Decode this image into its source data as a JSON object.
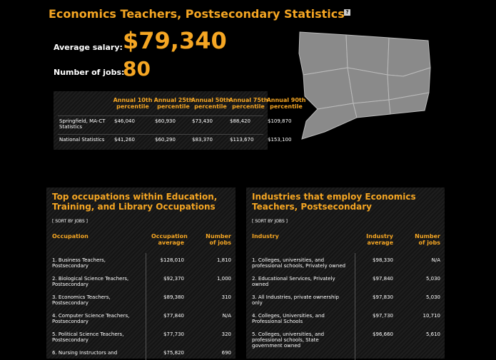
{
  "header": {
    "title": "Economics Teachers, Postsecondary Statistics",
    "help_icon": "?"
  },
  "summary": {
    "salary_label": "Average salary:",
    "salary": "$79,340",
    "jobs_label": "Number of jobs:",
    "jobs": "80"
  },
  "stats_table": {
    "columns": [
      "Annual 10th percentile",
      "Annual 25th percentile",
      "Annual 50th percentile",
      "Annual 75th percentile",
      "Annual 90th percentile"
    ],
    "rows": [
      [
        "Springfield, MA-CT Statistics",
        "$46,040",
        "$60,930",
        "$73,430",
        "$88,420",
        "$109,870"
      ],
      [
        "National Statistics",
        "$41,260",
        "$60,290",
        "$83,370",
        "$113,670",
        "$153,100"
      ]
    ]
  },
  "panels": [
    {
      "title": "Top occupations within Education, Training, and Library Occupations",
      "sort": "[ SORT BY JOBS ]",
      "columns": [
        "Occupation",
        "Occupation average",
        "Number of jobs"
      ],
      "rows": [
        [
          "1. Business Teachers, Postsecondary",
          "$128,010",
          "1,810"
        ],
        [
          "2. Biological Science Teachers, Postsecondary",
          "$92,370",
          "1,000"
        ],
        [
          "3. Economics Teachers, Postsecondary",
          "$89,380",
          "310"
        ],
        [
          "4. Computer Science Teachers, Postsecondary",
          "$77,840",
          "N/A"
        ],
        [
          "5. Political Science Teachers, Postsecondary",
          "$77,730",
          "320"
        ],
        [
          "6. Nursing Instructors and",
          "$75,820",
          "690"
        ]
      ]
    },
    {
      "title": "Industries that employ Economics Teachers, Postsecondary",
      "sort": "[ SORT BY JOBS ]",
      "columns": [
        "Industry",
        "Industry average",
        "Number of jobs"
      ],
      "rows": [
        [
          "1. Colleges, universities, and professional schools, Privately owned",
          "$98,330",
          "N/A"
        ],
        [
          "2. Educational Services, Privately owned",
          "$97,840",
          "5,030"
        ],
        [
          "3. All Industries, private ownership only",
          "$97,830",
          "5,030"
        ],
        [
          "4. Colleges, Universities, and Professional Schools",
          "$97,730",
          "10,710"
        ],
        [
          "5. Colleges, universities, and professional schools, State government owned",
          "$96,660",
          "5,610"
        ]
      ]
    }
  ]
}
